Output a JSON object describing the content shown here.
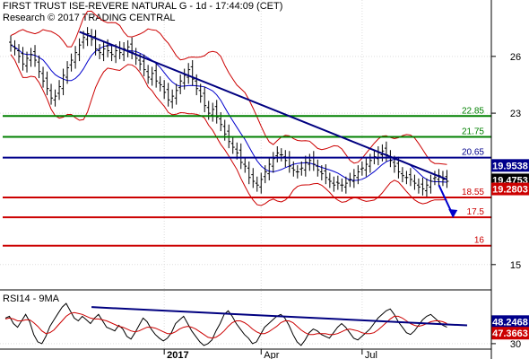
{
  "header": {
    "line1": "FIRST TRUST ISE-REVERE NATURAL G - 1d - 17:44:09 (CET)",
    "line2": "Research © 2017 TRADING CENTRAL"
  },
  "rsi_label": "RSI14 - 9MA",
  "chart_data": [
    {
      "type": "candlestick",
      "title": "FIRST TRUST ISE-REVERE NATURAL G - 1d",
      "ylim": [
        13.9,
        28.6
      ],
      "y_ticks": [
        {
          "value": 26,
          "label": "26"
        },
        {
          "value": 23,
          "label": "23"
        },
        {
          "value": 15,
          "label": "15"
        }
      ],
      "x_ticks": [
        {
          "x": 2017.03,
          "label": "2017"
        },
        {
          "x": 2017.27,
          "label": "Apr"
        },
        {
          "x": 2017.52,
          "label": "Jul"
        }
      ],
      "levels": [
        {
          "value": 22.85,
          "label": "22.85",
          "color": "#008000"
        },
        {
          "value": 21.75,
          "label": "21.75",
          "color": "#008000"
        },
        {
          "value": 20.65,
          "label": "20.65",
          "color": "#00008b"
        },
        {
          "value": 18.55,
          "label": "18.55",
          "color": "#cc0000"
        },
        {
          "value": 17.5,
          "label": "17.5",
          "color": "#cc0000"
        },
        {
          "value": 16,
          "label": "16",
          "color": "#cc0000"
        }
      ],
      "value_tags": [
        {
          "value": 19.9538,
          "label": "19.9538",
          "color": "#00008b"
        },
        {
          "value": 19.4753,
          "label": "19.4753",
          "color": "#000000"
        },
        {
          "value": 19.2803,
          "label": "19.2803",
          "color": "#cc0000"
        }
      ],
      "trendline": [
        [
          2016.82,
          27.3
        ],
        [
          2017.73,
          19.5
        ]
      ],
      "arrow": [
        [
          2017.71,
          19.2
        ],
        [
          2017.745,
          17.6
        ]
      ],
      "price_points": [
        [
          2016.65,
          26.6
        ],
        [
          2016.66,
          26.4
        ],
        [
          2016.67,
          26.0
        ],
        [
          2016.68,
          25.6
        ],
        [
          2016.69,
          25.9
        ],
        [
          2016.7,
          26.1
        ],
        [
          2016.71,
          25.8
        ],
        [
          2016.72,
          25.2
        ],
        [
          2016.73,
          24.7
        ],
        [
          2016.74,
          24.3
        ],
        [
          2016.75,
          23.8
        ],
        [
          2016.76,
          23.9
        ],
        [
          2016.77,
          24.4
        ],
        [
          2016.78,
          25.0
        ],
        [
          2016.79,
          25.4
        ],
        [
          2016.8,
          25.8
        ],
        [
          2016.81,
          26.2
        ],
        [
          2016.82,
          26.6
        ],
        [
          2016.83,
          27.0
        ],
        [
          2016.84,
          27.2
        ],
        [
          2016.85,
          26.9
        ],
        [
          2016.86,
          26.4
        ],
        [
          2016.87,
          26.2
        ],
        [
          2016.88,
          26.4
        ],
        [
          2016.89,
          26.3
        ],
        [
          2016.9,
          26.1
        ],
        [
          2016.91,
          26.3
        ],
        [
          2016.92,
          26.2
        ],
        [
          2016.93,
          26.4
        ],
        [
          2016.94,
          26.5
        ],
        [
          2016.95,
          26.2
        ],
        [
          2016.96,
          25.9
        ],
        [
          2016.97,
          25.6
        ],
        [
          2016.98,
          25.3
        ],
        [
          2016.99,
          24.9
        ],
        [
          2017.0,
          25.1
        ],
        [
          2017.01,
          24.7
        ],
        [
          2017.02,
          24.5
        ],
        [
          2017.03,
          24.1
        ],
        [
          2017.04,
          23.7
        ],
        [
          2017.05,
          23.9
        ],
        [
          2017.06,
          24.2
        ],
        [
          2017.07,
          24.7
        ],
        [
          2017.08,
          25.0
        ],
        [
          2017.09,
          25.3
        ],
        [
          2017.1,
          24.8
        ],
        [
          2017.11,
          24.3
        ],
        [
          2017.12,
          23.9
        ],
        [
          2017.13,
          23.4
        ],
        [
          2017.14,
          23.0
        ],
        [
          2017.15,
          23.2
        ],
        [
          2017.16,
          22.8
        ],
        [
          2017.17,
          22.4
        ],
        [
          2017.18,
          21.9
        ],
        [
          2017.19,
          21.5
        ],
        [
          2017.2,
          21.2
        ],
        [
          2017.21,
          20.9
        ],
        [
          2017.22,
          20.4
        ],
        [
          2017.23,
          20.2
        ],
        [
          2017.24,
          19.6
        ],
        [
          2017.25,
          19.4
        ],
        [
          2017.26,
          19.2
        ],
        [
          2017.27,
          19.5
        ],
        [
          2017.28,
          19.9
        ],
        [
          2017.29,
          20.3
        ],
        [
          2017.3,
          20.6
        ],
        [
          2017.31,
          20.9
        ],
        [
          2017.32,
          20.8
        ],
        [
          2017.33,
          20.5
        ],
        [
          2017.34,
          20.2
        ],
        [
          2017.35,
          20.0
        ],
        [
          2017.36,
          19.9
        ],
        [
          2017.37,
          20.1
        ],
        [
          2017.38,
          20.4
        ],
        [
          2017.39,
          20.5
        ],
        [
          2017.4,
          20.3
        ],
        [
          2017.41,
          20.0
        ],
        [
          2017.42,
          19.8
        ],
        [
          2017.43,
          19.6
        ],
        [
          2017.44,
          19.4
        ],
        [
          2017.45,
          19.2
        ],
        [
          2017.46,
          19.3
        ],
        [
          2017.47,
          19.2
        ],
        [
          2017.48,
          19.3
        ],
        [
          2017.49,
          19.5
        ],
        [
          2017.5,
          19.7
        ],
        [
          2017.51,
          19.9
        ],
        [
          2017.52,
          20.1
        ],
        [
          2017.53,
          20.3
        ],
        [
          2017.54,
          20.5
        ],
        [
          2017.55,
          20.7
        ],
        [
          2017.56,
          20.9
        ],
        [
          2017.57,
          21.0
        ],
        [
          2017.58,
          20.8
        ],
        [
          2017.59,
          20.5
        ],
        [
          2017.6,
          20.2
        ],
        [
          2017.61,
          19.9
        ],
        [
          2017.62,
          19.7
        ],
        [
          2017.63,
          19.6
        ],
        [
          2017.64,
          19.5
        ],
        [
          2017.65,
          19.3
        ],
        [
          2017.66,
          19.1
        ],
        [
          2017.67,
          19.0
        ],
        [
          2017.68,
          19.2
        ],
        [
          2017.69,
          19.4
        ],
        [
          2017.7,
          19.6
        ],
        [
          2017.71,
          19.7
        ],
        [
          2017.72,
          19.5
        ],
        [
          2017.73,
          19.4
        ]
      ]
    },
    {
      "type": "line",
      "title": "RSI14 - 9MA",
      "ylim": [
        25,
        80
      ],
      "y_ticks": [
        {
          "value": 30,
          "label": "30"
        }
      ],
      "value_tags": [
        {
          "value": 48.2468,
          "label": "48.2468",
          "color": "#00008b"
        },
        {
          "value": 47.3663,
          "label": "47.3663",
          "color": "#cc0000"
        }
      ],
      "trendline": [
        [
          2016.85,
          70
        ],
        [
          2017.78,
          50
        ]
      ],
      "series": [
        {
          "values": [
            58,
            60,
            52,
            48,
            55,
            62,
            54,
            40,
            32,
            30,
            38,
            49,
            56,
            63,
            70,
            74,
            66,
            58,
            55,
            60,
            56,
            52,
            58,
            62,
            55,
            48,
            46,
            44,
            50,
            46,
            38,
            35,
            42,
            50,
            58,
            54,
            46,
            40,
            36,
            33,
            36,
            42,
            52,
            56,
            60,
            52,
            44,
            38,
            32,
            28,
            30,
            34,
            44,
            52,
            62,
            66,
            60,
            52,
            46,
            40,
            36,
            30,
            32,
            40,
            48,
            52,
            56,
            60,
            62,
            58,
            50,
            40,
            32,
            28,
            34,
            42,
            46,
            44,
            40,
            38,
            36,
            42,
            48,
            52,
            48,
            42,
            36,
            34,
            38,
            42,
            46,
            52,
            58,
            62,
            66,
            68,
            62,
            54,
            48,
            42,
            40,
            44,
            50,
            56,
            60,
            62,
            58,
            54,
            50,
            48
          ]
        },
        {
          "values": [
            57,
            58,
            57,
            55,
            55,
            56,
            56,
            53,
            49,
            44,
            41,
            42,
            45,
            50,
            55,
            60,
            63,
            64,
            63,
            62,
            60,
            58,
            57,
            57,
            56,
            55,
            53,
            51,
            49,
            48,
            46,
            44,
            43,
            44,
            46,
            48,
            48,
            47,
            45,
            43,
            41,
            41,
            43,
            46,
            48,
            49,
            48,
            46,
            43,
            40,
            37,
            36,
            37,
            40,
            44,
            49,
            53,
            55,
            55,
            53,
            50,
            46,
            43,
            41,
            41,
            43,
            46,
            49,
            53,
            55,
            55,
            53,
            49,
            45,
            42,
            40,
            40,
            41,
            41,
            41,
            40,
            40,
            41,
            43,
            45,
            46,
            45,
            44,
            42,
            41,
            41,
            42,
            45,
            49,
            53,
            57,
            60,
            60,
            58,
            55,
            52,
            50,
            49,
            50,
            52,
            54,
            55,
            55,
            54,
            52
          ]
        }
      ]
    }
  ]
}
